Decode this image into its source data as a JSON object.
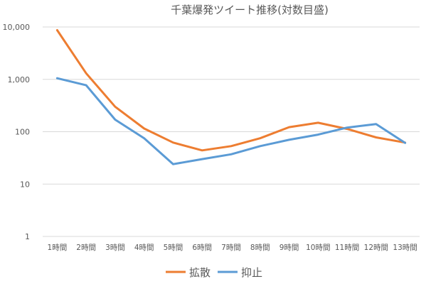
{
  "chart_data": {
    "type": "line",
    "title": "千葉爆発ツイート推移(対数目盛)",
    "xlabel": "",
    "ylabel": "",
    "y_scale": "log",
    "ylim": [
      1,
      10000
    ],
    "y_tick_values": [
      1,
      10,
      100,
      1000,
      10000
    ],
    "y_tick_labels": [
      "1",
      "10",
      "100",
      "1,000",
      "10,000"
    ],
    "grid": "horizontal",
    "legend": "bottom",
    "categories": [
      "1時間",
      "2時間",
      "3時間",
      "4時間",
      "5時間",
      "6時間",
      "7時間",
      "8時間",
      "9時間",
      "10時間",
      "11時間",
      "12時間",
      "13時間"
    ],
    "series": [
      {
        "name": "拡散",
        "color": "#ED7D31",
        "values": [
          8700,
          1300,
          300,
          115,
          62,
          44,
          53,
          75,
          122,
          148,
          113,
          78,
          62
        ]
      },
      {
        "name": "抑止",
        "color": "#5B9BD5",
        "values": [
          1050,
          770,
          170,
          75,
          24,
          30,
          37,
          53,
          70,
          88,
          120,
          140,
          61
        ]
      }
    ],
    "colors": {
      "grid": "#d9d9d9",
      "text": "#595959"
    }
  }
}
